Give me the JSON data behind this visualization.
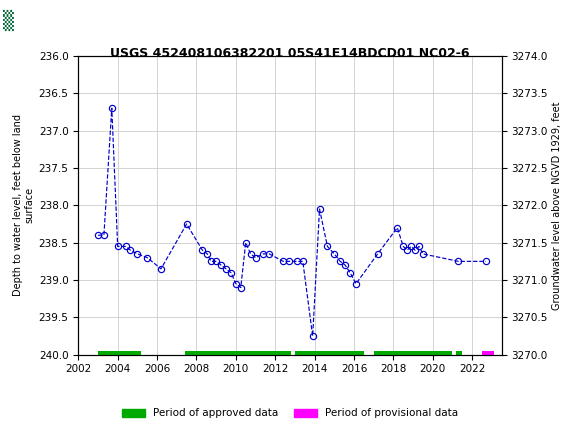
{
  "title": "USGS 452408106382201 05S41E14BDCD01 NC02-6",
  "ylabel_left": "Depth to water level, feet below land\nsurface",
  "ylabel_right": "Groundwater level above NGVD 1929, feet",
  "ylim_left": [
    240.0,
    236.0
  ],
  "ylim_right": [
    3270.0,
    3274.0
  ],
  "yticks_left": [
    236.0,
    236.5,
    237.0,
    237.5,
    238.0,
    238.5,
    239.0,
    239.5,
    240.0
  ],
  "yticks_right": [
    3270.0,
    3270.5,
    3271.0,
    3271.5,
    3272.0,
    3272.5,
    3273.0,
    3273.5,
    3274.0
  ],
  "xlim": [
    2002,
    2023.5
  ],
  "xticks": [
    2002,
    2004,
    2006,
    2008,
    2010,
    2012,
    2014,
    2016,
    2018,
    2020,
    2022
  ],
  "data_x": [
    2003.0,
    2003.3,
    2003.7,
    2004.0,
    2004.4,
    2004.65,
    2005.0,
    2005.5,
    2006.2,
    2007.5,
    2008.3,
    2008.55,
    2008.75,
    2009.0,
    2009.25,
    2009.5,
    2009.75,
    2010.0,
    2010.25,
    2010.5,
    2010.75,
    2011.0,
    2011.4,
    2011.7,
    2012.4,
    2012.7,
    2013.1,
    2013.4,
    2013.9,
    2014.25,
    2014.65,
    2015.0,
    2015.3,
    2015.55,
    2015.8,
    2016.1,
    2017.2,
    2018.2,
    2018.5,
    2018.7,
    2018.9,
    2019.1,
    2019.3,
    2019.5,
    2021.3,
    2022.7
  ],
  "data_y": [
    238.4,
    238.4,
    236.7,
    238.55,
    238.55,
    238.6,
    238.65,
    238.7,
    238.85,
    238.25,
    238.6,
    238.65,
    238.75,
    238.75,
    238.8,
    238.85,
    238.9,
    239.05,
    239.1,
    238.5,
    238.65,
    238.7,
    238.65,
    238.65,
    238.75,
    238.75,
    238.75,
    238.75,
    239.75,
    238.05,
    238.55,
    238.65,
    238.75,
    238.8,
    238.9,
    239.05,
    238.65,
    238.3,
    238.55,
    238.6,
    238.55,
    238.6,
    238.55,
    238.65,
    238.75,
    238.75
  ],
  "approved_periods": [
    [
      2003.0,
      2005.2
    ],
    [
      2007.4,
      2012.8
    ],
    [
      2013.0,
      2016.5
    ],
    [
      2017.0,
      2021.0
    ],
    [
      2021.2,
      2021.5
    ]
  ],
  "provisional_periods": [
    [
      2022.5,
      2023.1
    ]
  ],
  "approved_color": "#00aa00",
  "provisional_color": "#ff00ff",
  "header_color": "#006633",
  "line_color": "#0000cc",
  "marker_color": "#0000cc",
  "bg_color": "#ffffff",
  "grid_color": "#cccccc"
}
